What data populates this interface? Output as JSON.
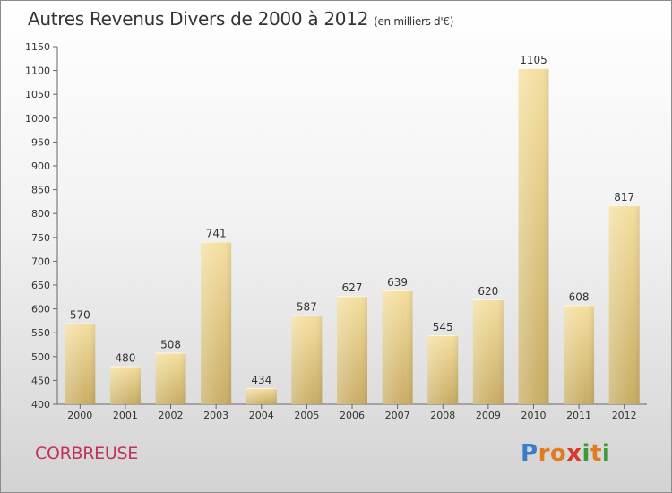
{
  "title": "Autres Revenus Divers de 2000 à 2012",
  "subtitle": "(en milliers d'€)",
  "place": "CORBREUSE",
  "logo": {
    "letters": [
      "P",
      "r",
      "o",
      "x",
      "i",
      "t",
      "i"
    ],
    "colors": [
      "#3a7dc9",
      "#e07b1f",
      "#e07b1f",
      "#d63a2a",
      "#3a9a3a",
      "#e07b1f",
      "#3a9a3a"
    ]
  },
  "colors": {
    "bar_light": "#f5dfa0",
    "bar_dark": "#c8ad65",
    "axis": "#666666",
    "title": "#333333",
    "place": "#c0325a"
  },
  "chart_data": {
    "type": "bar",
    "title": "Autres Revenus Divers de 2000 à 2012",
    "subtitle": "(en milliers d'€)",
    "categories": [
      "2000",
      "2001",
      "2002",
      "2003",
      "2004",
      "2005",
      "2006",
      "2007",
      "2008",
      "2009",
      "2010",
      "2011",
      "2012"
    ],
    "values": [
      570,
      480,
      508,
      741,
      434,
      587,
      627,
      639,
      545,
      620,
      1105,
      608,
      817
    ],
    "ylim": [
      400,
      1150
    ],
    "yticks": [
      400,
      450,
      500,
      550,
      600,
      650,
      700,
      750,
      800,
      850,
      900,
      950,
      1000,
      1050,
      1100,
      1150
    ],
    "grid": false,
    "data_labels": true
  }
}
